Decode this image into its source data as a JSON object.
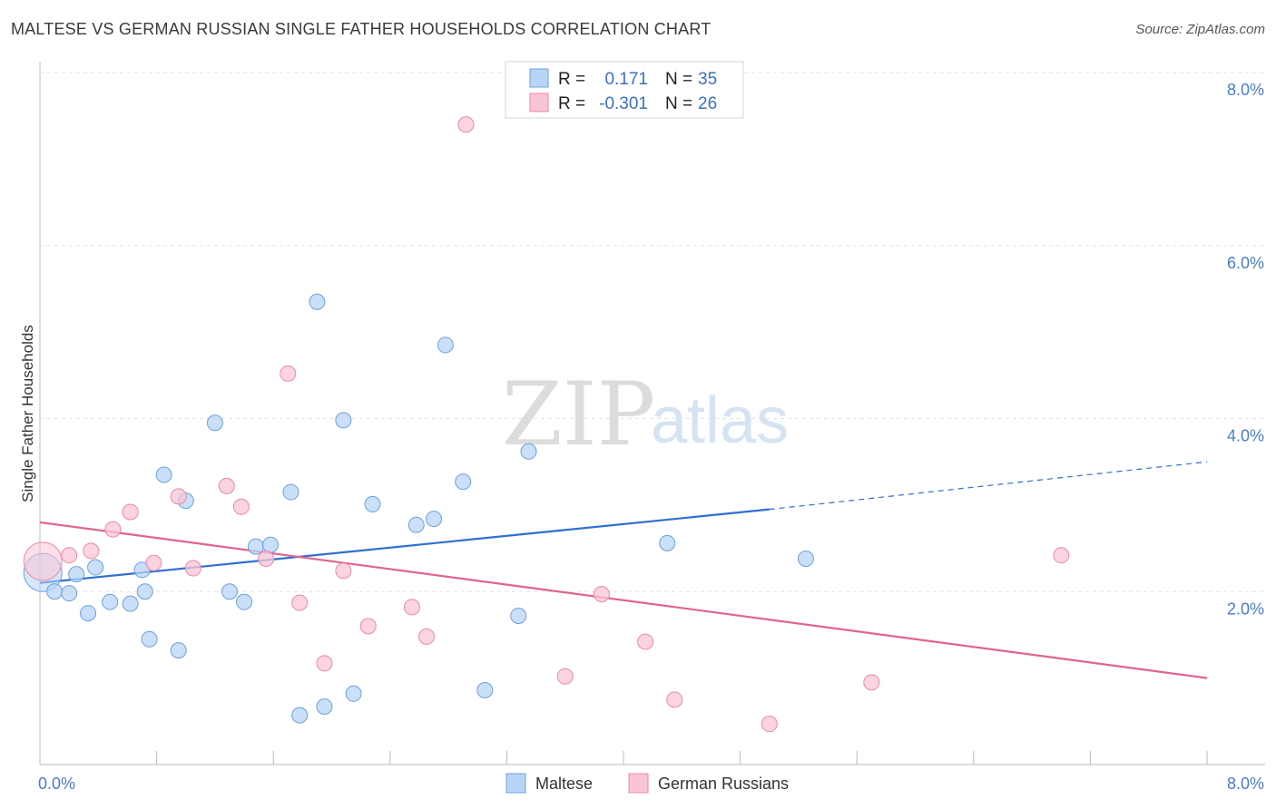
{
  "title": "MALTESE VS GERMAN RUSSIAN SINGLE FATHER HOUSEHOLDS CORRELATION CHART",
  "source": "Source: ZipAtlas.com",
  "watermark": {
    "zip": "ZIP",
    "atlas": "atlas"
  },
  "legend_top": [
    {
      "r_label": "R =",
      "r_value": "0.171",
      "n_label": "N =",
      "n_value": "35",
      "color": "#b8d4f5",
      "stroke": "#6d9fe0"
    },
    {
      "r_label": "R =",
      "r_value": "-0.301",
      "n_label": "N =",
      "n_value": "26",
      "color": "#f9c5d5",
      "stroke": "#e989a8"
    }
  ],
  "chart_data": {
    "type": "scatter",
    "title": "MALTESE VS GERMAN RUSSIAN SINGLE FATHER HOUSEHOLDS CORRELATION CHART",
    "xlabel": "",
    "ylabel": "Single Father Households",
    "xlim": [
      0,
      8
    ],
    "ylim": [
      0,
      8
    ],
    "x_tick_labels": [
      "0.0%",
      "8.0%"
    ],
    "y_ticks": [
      2,
      4,
      6,
      8
    ],
    "y_tick_labels": [
      "2.0%",
      "4.0%",
      "6.0%",
      "8.0%"
    ],
    "grid": true,
    "legend_position": "bottom",
    "series": [
      {
        "name": "Maltese",
        "color": "#b8d4f5",
        "stroke": "#6d9fe0",
        "line_color": "#2f6fcf",
        "trend": {
          "x": [
            0,
            5.0
          ],
          "y": [
            2.1,
            2.95
          ],
          "dashed_to": [
            8.0,
            3.5
          ]
        },
        "points": [
          {
            "x": 0.02,
            "y": 2.22,
            "big": true
          },
          {
            "x": 0.1,
            "y": 2.0
          },
          {
            "x": 0.2,
            "y": 1.98
          },
          {
            "x": 0.25,
            "y": 2.2
          },
          {
            "x": 0.33,
            "y": 1.75
          },
          {
            "x": 0.38,
            "y": 2.28
          },
          {
            "x": 0.48,
            "y": 1.88
          },
          {
            "x": 0.62,
            "y": 1.86
          },
          {
            "x": 0.7,
            "y": 2.25
          },
          {
            "x": 0.72,
            "y": 2.0
          },
          {
            "x": 0.75,
            "y": 1.45
          },
          {
            "x": 0.85,
            "y": 3.35
          },
          {
            "x": 0.95,
            "y": 1.32
          },
          {
            "x": 1.0,
            "y": 3.05
          },
          {
            "x": 1.2,
            "y": 3.95
          },
          {
            "x": 1.3,
            "y": 2.0
          },
          {
            "x": 1.4,
            "y": 1.88
          },
          {
            "x": 1.48,
            "y": 2.52
          },
          {
            "x": 1.58,
            "y": 2.54
          },
          {
            "x": 1.72,
            "y": 3.15
          },
          {
            "x": 1.78,
            "y": 0.57
          },
          {
            "x": 1.9,
            "y": 5.35
          },
          {
            "x": 1.95,
            "y": 0.67
          },
          {
            "x": 2.08,
            "y": 3.98
          },
          {
            "x": 2.15,
            "y": 0.82
          },
          {
            "x": 2.28,
            "y": 3.01
          },
          {
            "x": 2.58,
            "y": 2.77
          },
          {
            "x": 2.7,
            "y": 2.84
          },
          {
            "x": 2.78,
            "y": 4.85
          },
          {
            "x": 2.9,
            "y": 3.27
          },
          {
            "x": 3.05,
            "y": 0.86
          },
          {
            "x": 3.28,
            "y": 1.72
          },
          {
            "x": 3.35,
            "y": 3.62
          },
          {
            "x": 4.3,
            "y": 2.56
          },
          {
            "x": 5.25,
            "y": 2.38
          }
        ]
      },
      {
        "name": "German Russians",
        "color": "#f9c5d5",
        "stroke": "#e989a8",
        "line_color": "#e0638f",
        "trend": {
          "x": [
            0,
            8.0
          ],
          "y": [
            2.8,
            1.0
          ]
        },
        "points": [
          {
            "x": 0.02,
            "y": 2.35,
            "big": true
          },
          {
            "x": 0.2,
            "y": 2.42
          },
          {
            "x": 0.35,
            "y": 2.47
          },
          {
            "x": 0.5,
            "y": 2.72
          },
          {
            "x": 0.62,
            "y": 2.92
          },
          {
            "x": 0.78,
            "y": 2.33
          },
          {
            "x": 0.95,
            "y": 3.1
          },
          {
            "x": 1.05,
            "y": 2.27
          },
          {
            "x": 1.28,
            "y": 3.22
          },
          {
            "x": 1.38,
            "y": 2.98
          },
          {
            "x": 1.55,
            "y": 2.38
          },
          {
            "x": 1.7,
            "y": 4.52
          },
          {
            "x": 1.78,
            "y": 1.87
          },
          {
            "x": 1.95,
            "y": 1.17
          },
          {
            "x": 2.08,
            "y": 2.24
          },
          {
            "x": 2.25,
            "y": 1.6
          },
          {
            "x": 2.55,
            "y": 1.82
          },
          {
            "x": 2.65,
            "y": 1.48
          },
          {
            "x": 2.92,
            "y": 7.4
          },
          {
            "x": 3.6,
            "y": 1.02
          },
          {
            "x": 3.85,
            "y": 1.97
          },
          {
            "x": 4.15,
            "y": 1.42
          },
          {
            "x": 4.35,
            "y": 0.75
          },
          {
            "x": 5.0,
            "y": 0.47
          },
          {
            "x": 5.7,
            "y": 0.95
          },
          {
            "x": 7.0,
            "y": 2.42
          }
        ]
      }
    ]
  }
}
